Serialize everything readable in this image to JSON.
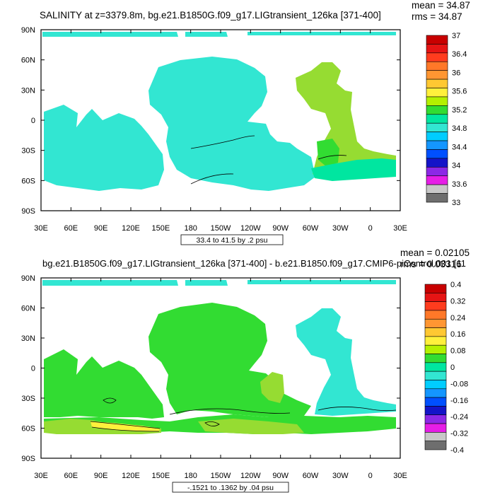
{
  "chart_data": [
    {
      "type": "heatmap",
      "title": "SALINITY at z=3379.8m, bg.e21.B1850G.f09_g17.LIGtransient_126ka [371-400]",
      "stats": {
        "mean": "mean = 34.87",
        "rms": "rms = 34.87"
      },
      "contour_info": "33.4 to 41.5 by .2 psu",
      "x_ticks": [
        "30E",
        "60E",
        "90E",
        "120E",
        "150E",
        "180",
        "150W",
        "120W",
        "90W",
        "60W",
        "30W",
        "0",
        "30E"
      ],
      "y_ticks": [
        "90N",
        "60N",
        "30N",
        "0",
        "30S",
        "60S",
        "90S"
      ],
      "colorbar": {
        "labels": [
          "37",
          "36.4",
          "36",
          "35.6",
          "35.2",
          "34.8",
          "34.4",
          "34",
          "33.6",
          "33"
        ],
        "colors": [
          "#c80000",
          "#e61414",
          "#ff3c1e",
          "#ff7828",
          "#ff9632",
          "#ffc832",
          "#fff03c",
          "#b4f000",
          "#32dc32",
          "#00e6a0",
          "#32e6d2",
          "#00cdff",
          "#1496ff",
          "#0050ff",
          "#1414c8",
          "#8c28e6",
          "#e61ee6",
          "#c8c8c8",
          "#6e6e6e"
        ]
      },
      "field_color": "#32e6d2"
    },
    {
      "type": "heatmap",
      "title": "bg.e21.B1850G.f09_g17.LIGtransient_126ka [371-400] - b.e21.B1850.f09_g17.CMIP6-piControl.001 [11",
      "stats": {
        "mean": "mean = 0.02105",
        "rms": "rms = 0.03316"
      },
      "contour_info": "-.1521 to .1362 by .04 psu",
      "x_ticks": [
        "30E",
        "60E",
        "90E",
        "120E",
        "150E",
        "180",
        "150W",
        "120W",
        "90W",
        "60W",
        "30W",
        "0",
        "30E"
      ],
      "y_ticks": [
        "90N",
        "60N",
        "30N",
        "0",
        "30S",
        "60S",
        "90S"
      ],
      "colorbar": {
        "labels": [
          "0.4",
          "0.32",
          "0.24",
          "0.16",
          "0.08",
          "0",
          "-0.08",
          "-0.16",
          "-0.24",
          "-0.32",
          "-0.4"
        ],
        "colors": [
          "#c80000",
          "#e61414",
          "#ff3c1e",
          "#ff7828",
          "#ff9632",
          "#ffc832",
          "#fff03c",
          "#b4f000",
          "#32dc32",
          "#00e6a0",
          "#32e6d2",
          "#00cdff",
          "#1496ff",
          "#0050ff",
          "#1414c8",
          "#8c28e6",
          "#e61ee6",
          "#c8c8c8",
          "#6e6e6e"
        ]
      },
      "field_color": "#32dc32"
    }
  ]
}
